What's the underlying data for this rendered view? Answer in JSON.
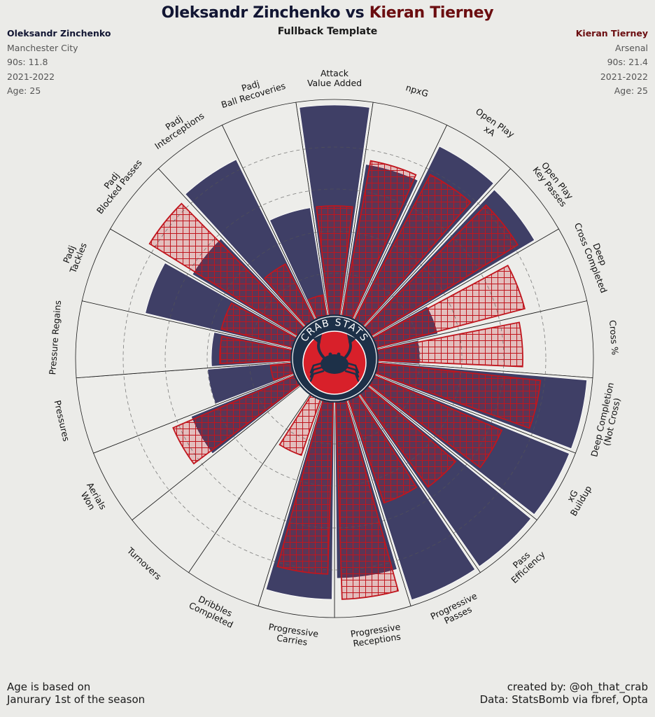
{
  "header": {
    "player1_name": "Oleksandr Zinchenko",
    "vs": "vs",
    "player2_name": "Kieran Tierney",
    "subtitle": "Fullback Template"
  },
  "player1": {
    "name": "Oleksandr Zinchenko",
    "team": "Manchester City",
    "nineties": "90s: 11.8",
    "season": "2021-2022",
    "age": "Age: 25",
    "color": "#3f3f66"
  },
  "player2": {
    "name": "Kieran Tierney",
    "team": "Arsenal",
    "nineties": "90s: 21.4",
    "season": "2021-2022",
    "age": "Age: 25",
    "color": "#c0161e"
  },
  "logo": {
    "text": "CRAB STATS",
    "ring_color": "#1d3048",
    "inner_color": "#d8202a"
  },
  "footer": {
    "left_line1": "Age is based on",
    "left_line2": "Janurary 1st of the season",
    "right_line1": "created by: @oh_that_crab",
    "right_line2": "Data: StatsBomb via fbref, Opta"
  },
  "chart_data": {
    "type": "polar-bar",
    "title": "Oleksandr Zinchenko vs Kieran Tierney",
    "subtitle": "Fullback Template",
    "rlim": [
      0,
      100
    ],
    "gridlines": [
      20,
      40,
      60,
      80
    ],
    "categories": [
      "Attack\nValue Added",
      "npxG",
      "Open Play\nxA",
      "Open Play\nKey Passes",
      "Deep\nCross Completed",
      "Cross %",
      "Deep Completion\n(Not Cross)",
      "xG\nBuildup",
      "Pass\nEfficiency",
      "Progressive\nPasses",
      "Progressive\nReceptions",
      "Progressive\nCarries",
      "Dribbles\nCompleted",
      "Turnovers",
      "Aerials\nWon",
      "Pressures",
      "Pressure Regains",
      "Padj\nTackles",
      "Padj\nBlocked Passes",
      "Padj\nInterceptions",
      "Padj\nBall Recoveries"
    ],
    "series": [
      {
        "name": "Oleksandr Zinchenko",
        "values": [
          100,
          73,
          92,
          90,
          30,
          20,
          100,
          100,
          100,
          100,
          84,
          94,
          0,
          0,
          53,
          40,
          38,
          72,
          58,
          85,
          52
        ]
      },
      {
        "name": "Kieran Tierney",
        "values": [
          52,
          75,
          78,
          82,
          73,
          69,
          78,
          66,
          55,
          52,
          94,
          82,
          28,
          0,
          63,
          10,
          34,
          35,
          83,
          30,
          10
        ]
      }
    ]
  }
}
